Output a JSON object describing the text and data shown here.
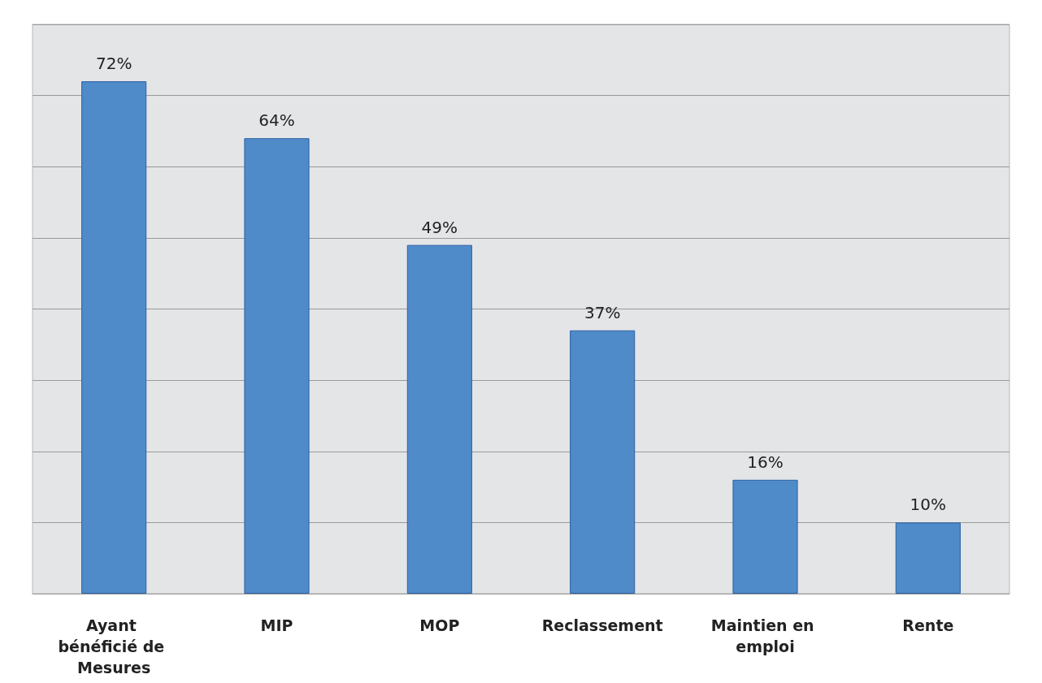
{
  "chart_data": {
    "type": "bar",
    "categories": [
      "Ayant bénéficié de Mesures",
      "MIP",
      "MOP",
      "Reclassement",
      "Maintien en emploi",
      "Rente"
    ],
    "values": [
      72,
      64,
      49,
      37,
      16,
      10
    ],
    "value_labels": [
      "72%",
      "64%",
      "49%",
      "37%",
      "16%",
      "10%"
    ],
    "color": "#4f8bc9",
    "grid": "y",
    "tick_labels": "x"
  }
}
